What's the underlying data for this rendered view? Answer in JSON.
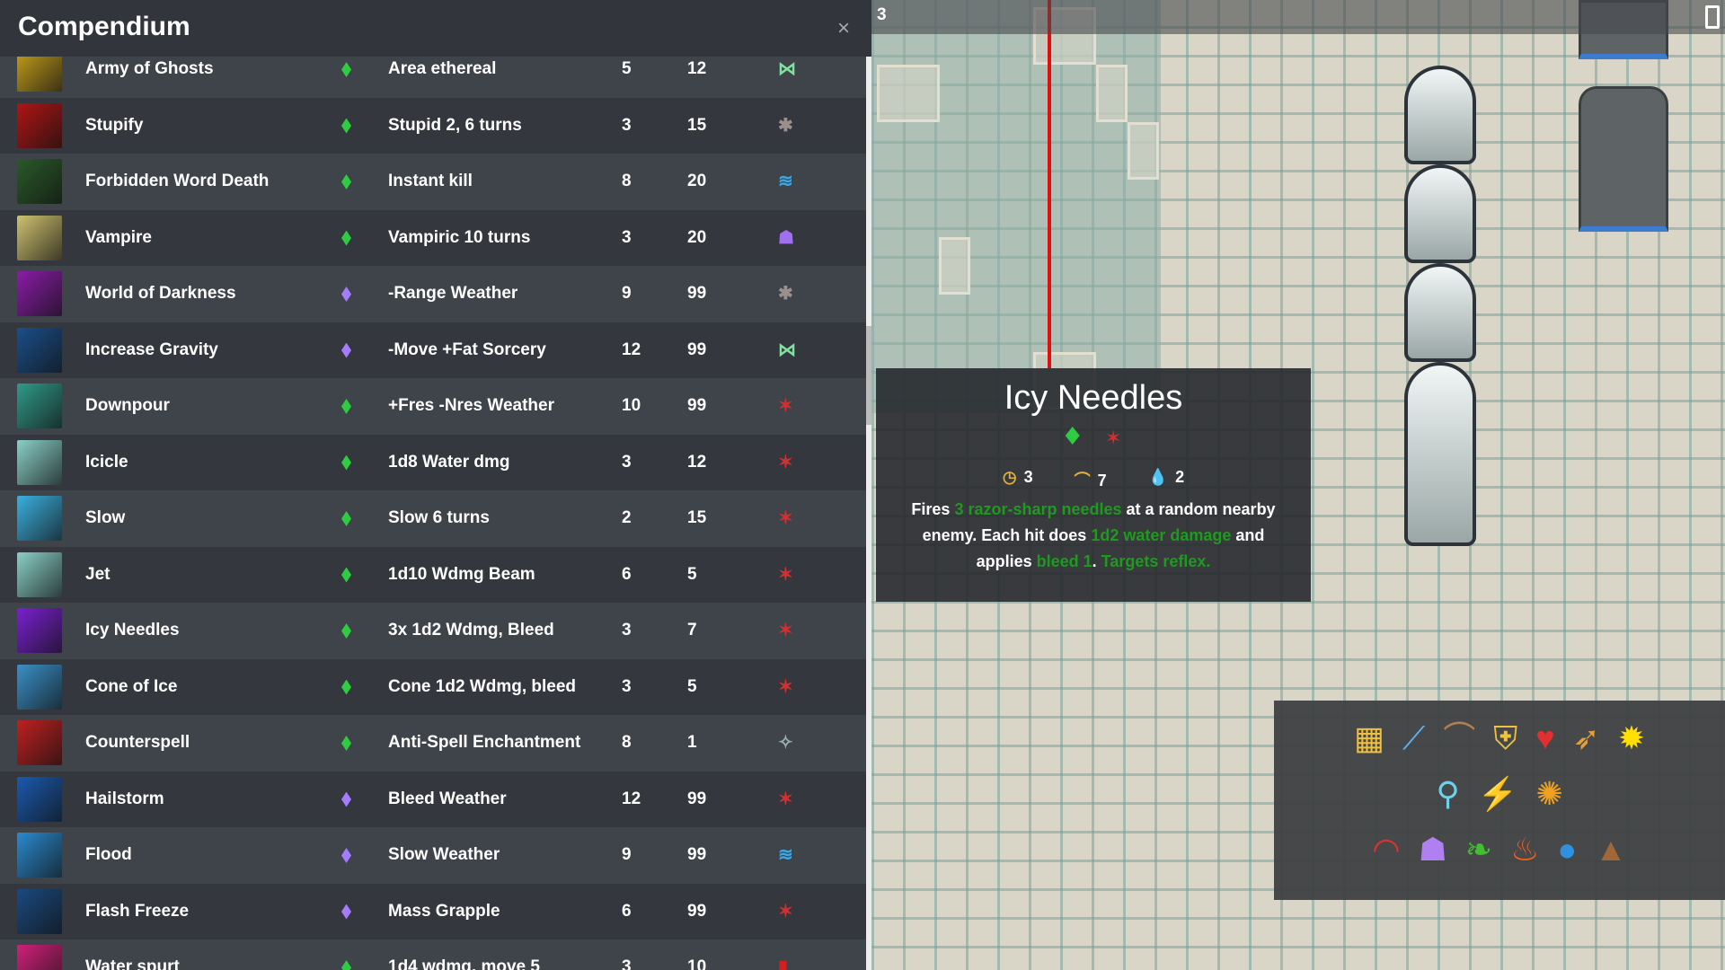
{
  "header": {
    "title": "Compendium",
    "close": "×"
  },
  "schools": {
    "green": "#2ecc40",
    "purple": "#a67cff"
  },
  "spells": [
    {
      "name": "Army of Ghosts",
      "school": "green",
      "effect": "Area ethereal",
      "n1": "5",
      "n2": "12",
      "type": "wings-icon",
      "type_glyph": "⋈",
      "type_color": "#7fe0a0",
      "icon_color": "#c9a21a"
    },
    {
      "name": "Stupify",
      "school": "green",
      "effect": "Stupid 2, 6 turns",
      "n1": "3",
      "n2": "15",
      "type": "skull-mask-icon",
      "type_glyph": "✱",
      "type_color": "#9a8f8a",
      "icon_color": "#b01515"
    },
    {
      "name": "Forbidden Word Death",
      "school": "green",
      "effect": "Instant kill",
      "n1": "8",
      "n2": "20",
      "type": "wave-icon",
      "type_glyph": "≋",
      "type_color": "#3aa9e8",
      "icon_color": "#2a5a2a"
    },
    {
      "name": "Vampire",
      "school": "green",
      "effect": "Vampiric 10 turns",
      "n1": "3",
      "n2": "20",
      "type": "purple-skull-icon",
      "type_glyph": "☗",
      "type_color": "#a070f0",
      "icon_color": "#cfc270"
    },
    {
      "name": "World of Darkness",
      "school": "purple",
      "effect": "-Range Weather",
      "n1": "9",
      "n2": "99",
      "type": "skull-mask-icon",
      "type_glyph": "✱",
      "type_color": "#9a8f8a",
      "icon_color": "#8a1ca8"
    },
    {
      "name": "Increase Gravity",
      "school": "purple",
      "effect": "-Move +Fat Sorcery",
      "n1": "12",
      "n2": "99",
      "type": "wings-icon",
      "type_glyph": "⋈",
      "type_color": "#7fe0a0",
      "icon_color": "#1a4f8a"
    },
    {
      "name": "Downpour",
      "school": "green",
      "effect": "+Fres -Nres Weather",
      "n1": "10",
      "n2": "99",
      "type": "bleed-icon",
      "type_glyph": "✶",
      "type_color": "#d03030",
      "icon_color": "#2f9a8a"
    },
    {
      "name": "Icicle",
      "school": "green",
      "effect": "1d8 Water dmg",
      "n1": "3",
      "n2": "12",
      "type": "bleed-icon",
      "type_glyph": "✶",
      "type_color": "#d03030",
      "icon_color": "#8ad0c8"
    },
    {
      "name": "Slow",
      "school": "green",
      "effect": "Slow 6 turns",
      "n1": "2",
      "n2": "15",
      "type": "bleed-icon",
      "type_glyph": "✶",
      "type_color": "#d03030",
      "icon_color": "#3ab0e0"
    },
    {
      "name": "Jet",
      "school": "green",
      "effect": "1d10 Wdmg Beam",
      "n1": "6",
      "n2": "5",
      "type": "bleed-icon",
      "type_glyph": "✶",
      "type_color": "#d03030",
      "icon_color": "#8ad0c8"
    },
    {
      "name": "Icy Needles",
      "school": "green",
      "effect": "3x 1d2 Wdmg, Bleed",
      "n1": "3",
      "n2": "7",
      "type": "bleed-icon",
      "type_glyph": "✶",
      "type_color": "#d03030",
      "icon_color": "#7a20d0"
    },
    {
      "name": "Cone of Ice",
      "school": "green",
      "effect": "Cone 1d2 Wdmg, bleed",
      "n1": "3",
      "n2": "5",
      "type": "bleed-icon",
      "type_glyph": "✶",
      "type_color": "#d03030",
      "icon_color": "#3a90c8"
    },
    {
      "name": "Counterspell",
      "school": "green",
      "effect": "Anti-Spell Enchantment",
      "n1": "8",
      "n2": "1",
      "type": "sparkle-icon",
      "type_glyph": "✧",
      "type_color": "#9ab0b0",
      "icon_color": "#c02020"
    },
    {
      "name": "Hailstorm",
      "school": "purple",
      "effect": "Bleed Weather",
      "n1": "12",
      "n2": "99",
      "type": "bleed-icon",
      "type_glyph": "✶",
      "type_color": "#d03030",
      "icon_color": "#1a5ab0"
    },
    {
      "name": "Flood",
      "school": "purple",
      "effect": "Slow Weather",
      "n1": "9",
      "n2": "99",
      "type": "wave-icon",
      "type_glyph": "≋",
      "type_color": "#3aa9e8",
      "icon_color": "#2a8ad0"
    },
    {
      "name": "Flash Freeze",
      "school": "purple",
      "effect": "Mass Grapple",
      "n1": "6",
      "n2": "99",
      "type": "bleed-icon",
      "type_glyph": "✶",
      "type_color": "#d03030",
      "icon_color": "#1a4a80"
    },
    {
      "name": "Water spurt",
      "school": "green",
      "effect": "1d4 wdmg, move 5",
      "n1": "3",
      "n2": "10",
      "type": "red-banner-icon",
      "type_glyph": "▮",
      "type_color": "#d02020",
      "icon_color": "#d0207a"
    }
  ],
  "tooltip": {
    "title": "Icy Needles",
    "school_icon": "green-diamond-icon",
    "type_icon": "bleed-icon",
    "stats": [
      {
        "icon": "clock-icon",
        "glyph": "◷",
        "value": "3"
      },
      {
        "icon": "bow-icon",
        "glyph": "⌒",
        "value": "7"
      },
      {
        "icon": "water-drop-icon",
        "glyph": "💧",
        "value": "2"
      }
    ],
    "desc": [
      {
        "t": "Fires ",
        "g": false
      },
      {
        "t": "3 razor-sharp needles",
        "g": true
      },
      {
        "t": " at a random nearby enemy. Each hit does ",
        "g": false
      },
      {
        "t": "1d2 water damage",
        "g": true
      },
      {
        "t": " and applies ",
        "g": false
      },
      {
        "t": "bleed 1",
        "g": true
      },
      {
        "t": ". ",
        "g": false
      },
      {
        "t": "Targets reflex.",
        "g": true
      }
    ]
  },
  "map": {
    "level": "3",
    "exit_icon": "exit-door-icon"
  },
  "toolbar": {
    "rows": [
      [
        {
          "n": "coins-icon",
          "g": "▦",
          "c": "#f0c040"
        },
        {
          "n": "sword-icon",
          "g": "⟋",
          "c": "#60b0f0"
        },
        {
          "n": "bow-icon",
          "g": "⌒",
          "c": "#b08050"
        },
        {
          "n": "shield-icon",
          "g": "⛨",
          "c": "#f0c040"
        },
        {
          "n": "heart-icon",
          "g": "♥",
          "c": "#e03030"
        },
        {
          "n": "boots-icon",
          "g": "➶",
          "c": "#e0a040"
        },
        {
          "n": "burst-icon",
          "g": "✹",
          "c": "#ffe000"
        }
      ],
      [
        {
          "n": "figure-shield-icon",
          "g": "⚲",
          "c": "#70d0e8"
        },
        {
          "n": "figure-dash-icon",
          "g": "⚡",
          "c": "#f0d060"
        },
        {
          "n": "figure-strong-icon",
          "g": "✺",
          "c": "#f0a020"
        }
      ],
      [
        {
          "n": "rainbow-icon",
          "g": "◠",
          "c": "#e03030"
        },
        {
          "n": "purple-skull-icon",
          "g": "☗",
          "c": "#b080f0"
        },
        {
          "n": "leaf-icon",
          "g": "❧",
          "c": "#40c030"
        },
        {
          "n": "fire-icon",
          "g": "♨",
          "c": "#f06020"
        },
        {
          "n": "water-drop-icon",
          "g": "●",
          "c": "#3090e0"
        },
        {
          "n": "earth-icon",
          "g": "▲",
          "c": "#a06838"
        }
      ]
    ]
  }
}
